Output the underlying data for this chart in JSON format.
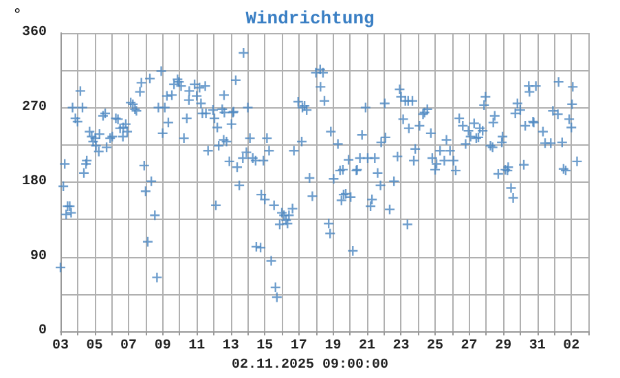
{
  "chart_data": {
    "type": "scatter",
    "title": "Windrichtung",
    "ylabel": "°",
    "annotations": [
      "02.11.2025 09:00:00"
    ],
    "marker": "cross",
    "grid": true,
    "xlim": [
      "2025-10-03",
      "2025-11-03"
    ],
    "xticks": [
      {
        "value": "2025-10-03",
        "label": "03"
      },
      {
        "value": "2025-10-04",
        "label": null
      },
      {
        "value": "2025-10-05",
        "label": "05"
      },
      {
        "value": "2025-10-06",
        "label": null
      },
      {
        "value": "2025-10-07",
        "label": "07"
      },
      {
        "value": "2025-10-08",
        "label": null
      },
      {
        "value": "2025-10-09",
        "label": "09"
      },
      {
        "value": "2025-10-10",
        "label": null
      },
      {
        "value": "2025-10-11",
        "label": "11"
      },
      {
        "value": "2025-10-12",
        "label": null
      },
      {
        "value": "2025-10-13",
        "label": "13"
      },
      {
        "value": "2025-10-14",
        "label": null
      },
      {
        "value": "2025-10-15",
        "label": "15"
      },
      {
        "value": "2025-10-16",
        "label": null
      },
      {
        "value": "2025-10-17",
        "label": "17"
      },
      {
        "value": "2025-10-18",
        "label": null
      },
      {
        "value": "2025-10-19",
        "label": "19"
      },
      {
        "value": "2025-10-20",
        "label": null
      },
      {
        "value": "2025-10-21",
        "label": "21"
      },
      {
        "value": "2025-10-22",
        "label": null
      },
      {
        "value": "2025-10-23",
        "label": "23"
      },
      {
        "value": "2025-10-24",
        "label": null
      },
      {
        "value": "2025-10-25",
        "label": "25"
      },
      {
        "value": "2025-10-26",
        "label": null
      },
      {
        "value": "2025-10-27",
        "label": "27"
      },
      {
        "value": "2025-10-28",
        "label": null
      },
      {
        "value": "2025-10-29",
        "label": "29"
      },
      {
        "value": "2025-10-30",
        "label": null
      },
      {
        "value": "2025-10-31",
        "label": "31"
      },
      {
        "value": "2025-11-01",
        "label": null
      },
      {
        "value": "2025-11-02",
        "label": "02"
      },
      {
        "value": "2025-11-03",
        "label": null
      }
    ],
    "ylim": [
      0,
      360
    ],
    "yticks": [
      0,
      {
        "value": 45,
        "label": null
      },
      90,
      {
        "value": 135,
        "label": null
      },
      180,
      {
        "value": 225,
        "label": null
      },
      270,
      {
        "value": 315,
        "label": null
      },
      360
    ],
    "series": [
      {
        "color": "#4a86c0",
        "x": [
          "2025-10-03T00:00",
          "2025-10-03T04:00",
          "2025-10-03T06:00",
          "2025-10-03T08:00",
          "2025-10-03T10:00",
          "2025-10-03T13:00",
          "2025-10-03T15:00",
          "2025-10-03T17:00",
          "2025-10-03T21:00",
          "2025-10-04T00:00",
          "2025-10-04T04:00",
          "2025-10-04T07:00",
          "2025-10-04T09:00",
          "2025-10-04T12:00",
          "2025-10-04T13:00",
          "2025-10-04T17:00",
          "2025-10-04T20:00",
          "2025-10-04T22:00",
          "2025-10-05T01:00",
          "2025-10-05T02:00",
          "2025-10-05T06:00",
          "2025-10-05T07:00",
          "2025-10-05T12:00",
          "2025-10-05T15:00",
          "2025-10-05T17:00",
          "2025-10-05T22:00",
          "2025-10-06T01:00",
          "2025-10-06T06:00",
          "2025-10-06T09:00",
          "2025-10-06T12:00",
          "2025-10-06T16:00",
          "2025-10-06T16:30",
          "2025-10-06T20:00",
          "2025-10-06T22:00",
          "2025-10-07T03:00",
          "2025-10-07T06:00",
          "2025-10-07T09:00",
          "2025-10-07T11:00",
          "2025-10-07T16:00",
          "2025-10-07T18:00",
          "2025-10-07T22:00",
          "2025-10-08T00:00",
          "2025-10-08T03:00",
          "2025-10-08T06:00",
          "2025-10-08T08:00",
          "2025-10-08T13:00",
          "2025-10-08T16:00",
          "2025-10-08T18:00",
          "2025-10-08T22:00",
          "2025-10-09T00:00",
          "2025-10-09T03:00",
          "2025-10-09T06:00",
          "2025-10-09T08:00",
          "2025-10-09T13:00",
          "2025-10-09T16:00",
          "2025-10-09T21:00",
          "2025-10-09T23:00",
          "2025-10-10T02:00",
          "2025-10-10T06:00",
          "2025-10-10T10:00",
          "2025-10-10T13:00",
          "2025-10-10T13:30",
          "2025-10-10T21:00",
          "2025-10-11T00:00",
          "2025-10-11T04:00",
          "2025-10-11T06:00",
          "2025-10-11T08:00",
          "2025-10-11T12:00",
          "2025-10-11T13:00",
          "2025-10-11T16:00",
          "2025-10-11T23:00",
          "2025-10-12T01:00",
          "2025-10-12T03:00",
          "2025-10-12T05:00",
          "2025-10-12T07:00",
          "2025-10-12T14:00",
          "2025-10-12T14:30",
          "2025-10-12T12:00",
          "2025-10-12T15:00",
          "2025-10-12T18:00",
          "2025-10-12T22:00",
          "2025-10-13T01:00",
          "2025-10-13T03:00",
          "2025-10-13T04:00",
          "2025-10-13T07:00",
          "2025-10-13T09:00",
          "2025-10-13T12:00",
          "2025-10-13T17:00",
          "2025-10-13T18:00",
          "2025-10-13T22:00",
          "2025-10-14T00:00",
          "2025-10-14T03:00",
          "2025-10-14T07:00",
          "2025-10-14T11:00",
          "2025-10-14T12:00",
          "2025-10-14T18:00",
          "2025-10-14T19:00",
          "2025-10-14T22:00",
          "2025-10-15T00:00",
          "2025-10-15T03:00",
          "2025-10-15T06:00",
          "2025-10-15T09:00",
          "2025-10-15T13:00",
          "2025-10-15T15:00",
          "2025-10-15T17:00",
          "2025-10-15T21:00",
          "2025-10-16T00:00",
          "2025-10-16T03:00",
          "2025-10-16T06:00",
          "2025-10-16T08:00",
          "2025-10-16T10:00",
          "2025-10-16T15:00",
          "2025-10-16T17:00",
          "2025-10-16T23:00",
          "2025-10-17T04:00",
          "2025-10-17T05:00",
          "2025-10-17T08:00",
          "2025-10-17T11:00",
          "2025-10-17T15:00",
          "2025-10-17T19:00",
          "2025-10-18T00:00",
          "2025-10-18T06:00",
          "2025-10-18T06:30",
          "2025-10-18T10:00",
          "2025-10-18T12:00",
          "2025-10-18T18:00",
          "2025-10-18T20:00",
          "2025-10-18T21:00",
          "2025-10-19T01:00",
          "2025-10-19T07:00",
          "2025-10-19T10:00",
          "2025-10-19T12:00",
          "2025-10-19T14:00",
          "2025-10-19T15:00",
          "2025-10-19T18:00",
          "2025-10-19T22:00",
          "2025-10-20T01:00",
          "2025-10-20T04:00",
          "2025-10-20T09:00",
          "2025-10-20T10:00",
          "2025-10-20T14:00",
          "2025-10-20T17:00",
          "2025-10-20T22:00",
          "2025-10-21T01:00",
          "2025-10-21T05:00",
          "2025-10-21T07:00",
          "2025-10-21T11:00",
          "2025-10-21T15:00",
          "2025-10-21T19:00",
          "2025-10-21T20:00",
          "2025-10-22T01:00",
          "2025-10-22T02:00",
          "2025-10-22T08:00",
          "2025-10-22T14:00",
          "2025-10-22T19:00",
          "2025-10-22T22:00",
          "2025-10-23T00:00",
          "2025-10-23T03:00",
          "2025-10-23T06:00",
          "2025-10-23T09:00",
          "2025-10-23T11:00",
          "2025-10-23T10:00",
          "2025-10-23T16:00",
          "2025-10-23T18:00",
          "2025-10-23T20:00",
          "2025-10-24T02:00",
          "2025-10-24T07:00",
          "2025-10-24T09:00",
          "2025-10-24T13:00",
          "2025-10-24T18:00",
          "2025-10-24T20:00",
          "2025-10-25T00:00",
          "2025-10-25T02:00",
          "2025-10-25T07:00",
          "2025-10-25T13:00",
          "2025-10-25T16:00",
          "2025-10-25T21:00",
          "2025-10-26T02:00",
          "2025-10-26T05:00",
          "2025-10-26T10:00",
          "2025-10-26T15:00",
          "2025-10-26T19:00",
          "2025-10-26T23:00",
          "2025-10-27T02:00",
          "2025-10-27T07:00",
          "2025-10-27T10:00",
          "2025-10-27T13:00",
          "2025-10-27T15:00",
          "2025-10-27T19:00",
          "2025-10-27T21:00",
          "2025-10-27T23:00",
          "2025-10-28T06:00",
          "2025-10-28T09:00",
          "2025-10-28T10:00",
          "2025-10-28T12:00",
          "2025-10-28T17:00",
          "2025-10-28T22:00",
          "2025-10-28T23:00",
          "2025-10-29T03:00",
          "2025-10-29T06:00",
          "2025-10-29T07:00",
          "2025-10-29T11:00",
          "2025-10-29T14:00",
          "2025-10-29T17:00",
          "2025-10-29T20:00",
          "2025-10-30T00:00",
          "2025-10-30T05:00",
          "2025-10-30T07:00",
          "2025-10-30T12:00",
          "2025-10-30T13:00",
          "2025-10-30T18:00",
          "2025-10-30T19:00",
          "2025-10-30T22:00",
          "2025-10-31T08:00",
          "2025-10-31T11:00",
          "2025-10-31T19:00",
          "2025-10-31T22:00",
          "2025-11-01T05:00",
          "2025-11-01T06:00",
          "2025-11-01T11:00",
          "2025-11-01T13:00",
          "2025-11-01T16:00",
          "2025-11-01T21:00",
          "2025-11-02T00:00",
          "2025-11-02T01:00",
          "2025-11-02T02:00",
          "2025-11-02T08:00"
        ],
        "values": [
          77,
          175,
          202,
          141,
          151,
          151,
          143,
          270,
          257,
          253,
          290,
          270,
          191,
          202,
          206,
          241,
          235,
          229,
          233,
          224,
          217,
          238,
          260,
          263,
          222,
          233,
          235,
          257,
          256,
          245,
          235,
          246,
          250,
          241,
          276,
          274,
          268,
          266,
          289,
          300,
          200,
          169,
          108,
          305,
          181,
          140,
          65,
          270,
          314,
          239,
          270,
          284,
          252,
          285,
          298,
          304,
          301,
          296,
          233,
          257,
          279,
          290,
          298,
          284,
          294,
          275,
          263,
          296,
          263,
          218,
          267,
          257,
          152,
          246,
          224,
          231,
          285,
          268,
          264,
          229,
          205,
          250,
          264,
          265,
          303,
          198,
          176,
          209,
          336,
          216,
          270,
          233,
          209,
          206,
          102,
          101,
          165,
          206,
          159,
          233,
          218,
          85,
          152,
          53,
          41,
          129,
          143,
          140,
          134,
          130,
          140,
          148,
          218,
          277,
          229,
          270,
          272,
          267,
          185,
          163,
          312,
          316,
          295,
          312,
          278,
          130,
          118,
          241,
          184,
          226,
          194,
          158,
          195,
          165,
          166,
          207,
          162,
          97,
          194,
          195,
          209,
          237,
          270,
          209,
          151,
          159,
          209,
          191,
          176,
          228,
          275,
          234,
          147,
          181,
          211,
          292,
          283,
          256,
          278,
          129,
          245,
          278,
          278,
          206,
          220,
          248,
          262,
          264,
          268,
          239,
          209,
          195,
          202,
          218,
          206,
          231,
          218,
          206,
          194,
          257,
          248,
          226,
          242,
          235,
          251,
          233,
          234,
          245,
          242,
          273,
          283,
          224,
          222,
          252,
          260,
          190,
          228,
          235,
          195,
          194,
          198,
          173,
          161,
          263,
          275,
          267,
          201,
          248,
          296,
          289,
          253,
          252,
          296,
          241,
          227,
          227,
          266,
          262,
          301,
          228,
          196,
          194,
          256,
          246,
          274,
          295,
          205
        ]
      }
    ]
  }
}
